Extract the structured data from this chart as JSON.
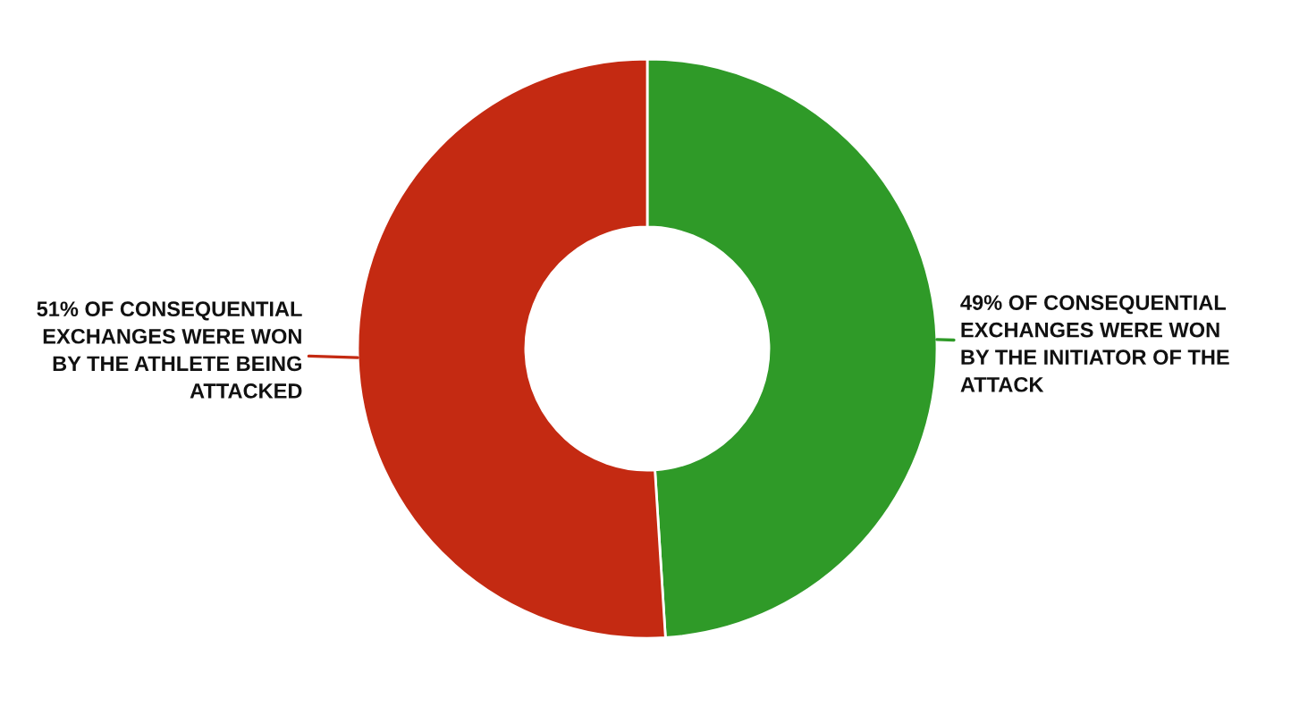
{
  "chart_data": {
    "type": "donut",
    "categories": [
      "49% OF CONSEQUENTIAL\nEXCHANGES WERE WON\nBY THE INITIATOR OF THE\nATTACK",
      "51% OF CONSEQUENTIAL\nEXCHANGES WERE WON\nBY THE ATHLETE BEING\nATTACKED"
    ],
    "values": [
      49,
      51
    ],
    "colors": [
      "#2f9a28",
      "#c42a12"
    ]
  }
}
